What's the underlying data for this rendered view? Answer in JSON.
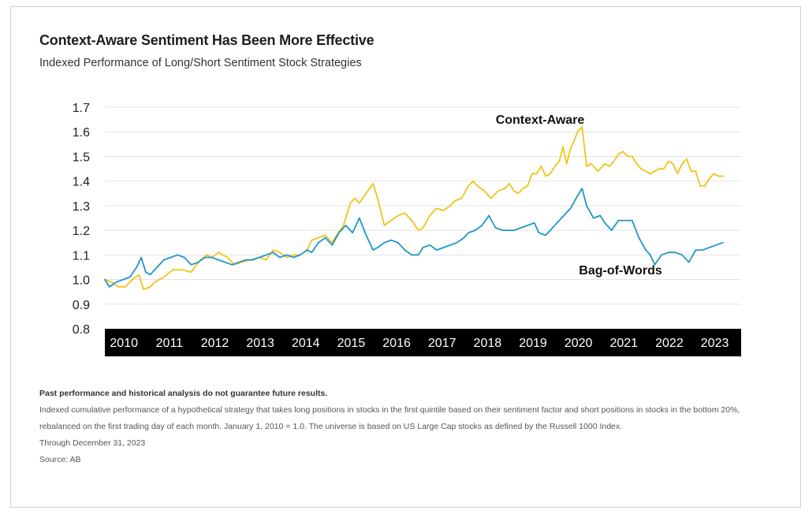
{
  "title": "Context-Aware Sentiment Has Been More Effective",
  "subtitle": "Indexed Performance of Long/Short Sentiment Stock Strategies",
  "colors": {
    "context_aware": "#f0c419",
    "bag_of_words": "#1f96c8",
    "axis_bar": "#000000",
    "grid": "#e3e3e3"
  },
  "chart_data": {
    "type": "line",
    "ylim": [
      0.8,
      1.7
    ],
    "yticks": [
      "0.8",
      "0.9",
      "1.0",
      "1.1",
      "1.2",
      "1.3",
      "1.4",
      "1.5",
      "1.6",
      "1.7"
    ],
    "xlim": [
      2010,
      2024
    ],
    "xticks": [
      "2010",
      "2011",
      "2012",
      "2013",
      "2014",
      "2015",
      "2016",
      "2017",
      "2018",
      "2019",
      "2020",
      "2021",
      "2022",
      "2023"
    ],
    "grid": "horizontal",
    "series": [
      {
        "name": "Context-Aware",
        "x": [
          2010.0,
          2010.15,
          2010.3,
          2010.45,
          2010.6,
          2010.75,
          2010.85,
          2011.0,
          2011.1,
          2011.3,
          2011.5,
          2011.7,
          2011.9,
          2012.1,
          2012.25,
          2012.35,
          2012.5,
          2012.7,
          2012.85,
          2013.0,
          2013.2,
          2013.4,
          2013.55,
          2013.7,
          2013.85,
          2014.0,
          2014.15,
          2014.3,
          2014.45,
          2014.55,
          2014.7,
          2014.85,
          2015.0,
          2015.1,
          2015.25,
          2015.4,
          2015.5,
          2015.6,
          2015.75,
          2015.9,
          2016.0,
          2016.15,
          2016.3,
          2016.45,
          2016.6,
          2016.75,
          2016.9,
          2017.0,
          2017.15,
          2017.3,
          2017.45,
          2017.6,
          2017.7,
          2017.85,
          2018.0,
          2018.1,
          2018.2,
          2018.35,
          2018.5,
          2018.65,
          2018.8,
          2018.9,
          2019.0,
          2019.1,
          2019.2,
          2019.3,
          2019.4,
          2019.5,
          2019.6,
          2019.7,
          2019.8,
          2019.9,
          2020.0,
          2020.08,
          2020.16,
          2020.24,
          2020.32,
          2020.4,
          2020.5,
          2020.6,
          2020.7,
          2020.85,
          2021.0,
          2021.1,
          2021.2,
          2021.3,
          2021.4,
          2021.5,
          2021.6,
          2021.7,
          2021.8,
          2021.9,
          2022.0,
          2022.1,
          2022.2,
          2022.3,
          2022.4,
          2022.5,
          2022.6,
          2022.7,
          2022.8,
          2022.9,
          2023.0,
          2023.1,
          2023.2,
          2023.3,
          2023.4,
          2023.5,
          2023.6
        ],
        "values": [
          1.0,
          0.99,
          0.97,
          0.97,
          1.0,
          1.02,
          0.96,
          0.97,
          0.99,
          1.01,
          1.04,
          1.04,
          1.03,
          1.08,
          1.1,
          1.09,
          1.11,
          1.09,
          1.06,
          1.07,
          1.08,
          1.09,
          1.08,
          1.12,
          1.11,
          1.09,
          1.1,
          1.1,
          1.12,
          1.16,
          1.17,
          1.18,
          1.15,
          1.18,
          1.22,
          1.31,
          1.33,
          1.31,
          1.35,
          1.39,
          1.33,
          1.22,
          1.24,
          1.26,
          1.27,
          1.24,
          1.2,
          1.21,
          1.26,
          1.29,
          1.28,
          1.3,
          1.32,
          1.33,
          1.38,
          1.4,
          1.38,
          1.36,
          1.33,
          1.36,
          1.37,
          1.39,
          1.36,
          1.35,
          1.37,
          1.38,
          1.43,
          1.43,
          1.46,
          1.42,
          1.43,
          1.46,
          1.48,
          1.54,
          1.47,
          1.53,
          1.56,
          1.6,
          1.62,
          1.46,
          1.47,
          1.44,
          1.47,
          1.46,
          1.48,
          1.51,
          1.52,
          1.5,
          1.5,
          1.47,
          1.45,
          1.44,
          1.43,
          1.44,
          1.45,
          1.45,
          1.48,
          1.47,
          1.43,
          1.47,
          1.49,
          1.44,
          1.44,
          1.38,
          1.38,
          1.41,
          1.43,
          1.42,
          1.42
        ]
      },
      {
        "name": "Bag-of-Words",
        "x": [
          2010.0,
          2010.1,
          2010.25,
          2010.4,
          2010.55,
          2010.7,
          2010.8,
          2010.9,
          2011.0,
          2011.15,
          2011.3,
          2011.45,
          2011.6,
          2011.75,
          2011.9,
          2012.05,
          2012.2,
          2012.35,
          2012.5,
          2012.65,
          2012.8,
          2012.95,
          2013.1,
          2013.25,
          2013.4,
          2013.55,
          2013.7,
          2013.85,
          2014.0,
          2014.15,
          2014.3,
          2014.45,
          2014.55,
          2014.7,
          2014.85,
          2015.0,
          2015.15,
          2015.3,
          2015.45,
          2015.6,
          2015.75,
          2015.9,
          2016.0,
          2016.15,
          2016.3,
          2016.45,
          2016.6,
          2016.75,
          2016.9,
          2017.0,
          2017.15,
          2017.3,
          2017.45,
          2017.6,
          2017.75,
          2017.9,
          2018.0,
          2018.15,
          2018.3,
          2018.45,
          2018.6,
          2018.75,
          2018.9,
          2019.0,
          2019.15,
          2019.3,
          2019.45,
          2019.55,
          2019.7,
          2019.8,
          2019.95,
          2020.1,
          2020.25,
          2020.4,
          2020.5,
          2020.6,
          2020.75,
          2020.9,
          2021.0,
          2021.15,
          2021.3,
          2021.45,
          2021.6,
          2021.75,
          2021.9,
          2022.0,
          2022.1,
          2022.25,
          2022.4,
          2022.55,
          2022.7,
          2022.85,
          2023.0,
          2023.15,
          2023.3,
          2023.45,
          2023.6
        ],
        "values": [
          1.0,
          0.97,
          0.99,
          1.0,
          1.01,
          1.05,
          1.09,
          1.03,
          1.02,
          1.05,
          1.08,
          1.09,
          1.1,
          1.09,
          1.06,
          1.07,
          1.09,
          1.09,
          1.08,
          1.07,
          1.06,
          1.07,
          1.08,
          1.08,
          1.09,
          1.1,
          1.11,
          1.09,
          1.1,
          1.09,
          1.1,
          1.12,
          1.11,
          1.15,
          1.17,
          1.14,
          1.19,
          1.22,
          1.19,
          1.25,
          1.18,
          1.12,
          1.13,
          1.15,
          1.16,
          1.15,
          1.12,
          1.1,
          1.1,
          1.13,
          1.14,
          1.12,
          1.13,
          1.14,
          1.15,
          1.17,
          1.19,
          1.2,
          1.22,
          1.26,
          1.21,
          1.2,
          1.2,
          1.2,
          1.21,
          1.22,
          1.23,
          1.19,
          1.18,
          1.2,
          1.23,
          1.26,
          1.29,
          1.34,
          1.37,
          1.3,
          1.25,
          1.26,
          1.23,
          1.2,
          1.24,
          1.24,
          1.24,
          1.17,
          1.12,
          1.1,
          1.06,
          1.1,
          1.11,
          1.11,
          1.1,
          1.07,
          1.12,
          1.12,
          1.13,
          1.14,
          1.15
        ]
      }
    ],
    "annotations": [
      {
        "text": "Context-Aware",
        "series": "Context-Aware"
      },
      {
        "text": "Bag-of-Words",
        "series": "Bag-of-Words"
      }
    ]
  },
  "notes": {
    "disclaimer": "Past performance and historical analysis do not guarantee future results.",
    "methodology": "Indexed cumulative performance of a hypothetical strategy that takes long positions in stocks in the first quintile based on their sentiment factor and short positions in stocks in the bottom 20%, rebalanced on the first trading day of each month. January 1, 2010 = 1.0. The universe is based on US Large Cap stocks as defined by the Russell 1000 Index.",
    "through": "Through December 31, 2023",
    "source": "Source: AB"
  }
}
